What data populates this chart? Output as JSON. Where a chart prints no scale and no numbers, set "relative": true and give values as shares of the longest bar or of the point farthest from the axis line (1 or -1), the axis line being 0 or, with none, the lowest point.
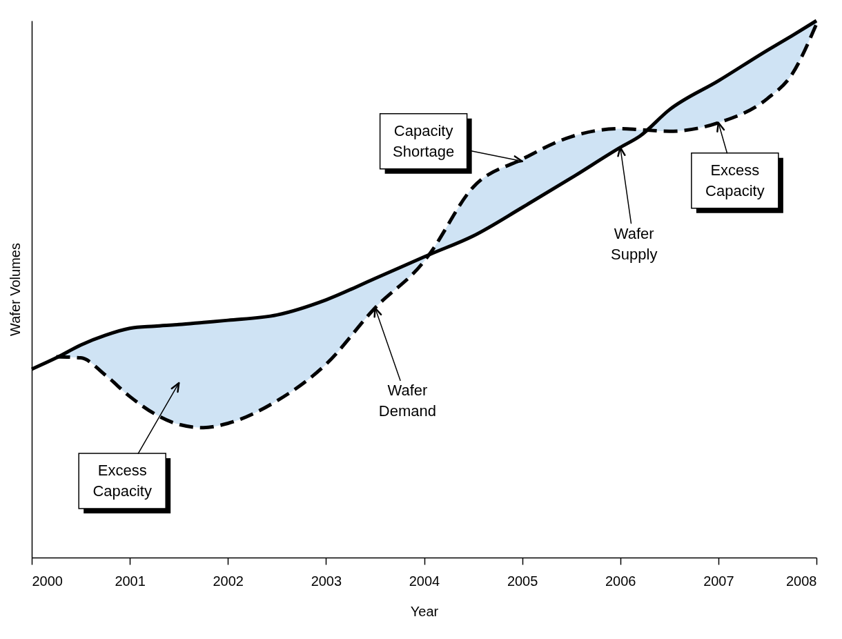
{
  "chart_data": {
    "type": "line",
    "relative": true,
    "xlabel": "Year",
    "ylabel": "Wafer Volumes",
    "xlim": [
      2000,
      2008
    ],
    "xticks": [
      2000,
      2001,
      2002,
      2003,
      2004,
      2005,
      2006,
      2007,
      2008
    ],
    "grid": false,
    "x": [
      2000,
      2000.25,
      2000.5,
      2000.75,
      2001,
      2001.25,
      2001.5,
      2001.75,
      2002,
      2002.5,
      2003,
      2003.5,
      2004,
      2004.05,
      2004.5,
      2005,
      2005.5,
      2006,
      2006.2,
      2006.5,
      2007,
      2007.5,
      2007.75,
      2008
    ],
    "series": [
      {
        "color": "#000000",
        "line_style": "solid",
        "values": [
          0.351,
          0.372,
          0.396,
          0.414,
          0.427,
          0.431,
          0.434,
          0.438,
          0.442,
          0.452,
          0.48,
          0.52,
          0.56,
          0.564,
          0.599,
          0.652,
          0.707,
          0.764,
          0.785,
          0.834,
          0.888,
          0.945,
          0.972,
          1.0
        ]
      },
      {
        "color": "#000000",
        "line_style": "dashed",
        "values": [
          null,
          0.374,
          0.372,
          0.34,
          0.3,
          0.268,
          0.248,
          0.242,
          0.25,
          0.292,
          0.36,
          0.465,
          0.552,
          0.564,
          0.69,
          0.742,
          0.784,
          0.799,
          0.797,
          0.794,
          0.81,
          0.855,
          0.9,
          0.994
        ],
        "lower": [
          null,
          0.374,
          0.372,
          0.34,
          0.3,
          0.268,
          0.248,
          0.242,
          0.25,
          0.292,
          0.36,
          0.465,
          0.552,
          0.564,
          0.69,
          0.742,
          0.784,
          0.799,
          0.797,
          0.794,
          0.81,
          0.855,
          0.9,
          0.994
        ],
        "upper": [
          null,
          0.372,
          0.396,
          0.414,
          0.427,
          0.431,
          0.434,
          0.438,
          0.442,
          0.452,
          0.48,
          0.52,
          0.56,
          0.564,
          0.599,
          0.652,
          0.707,
          0.764,
          0.785,
          0.834,
          0.888,
          0.945,
          0.972,
          1.0
        ]
      }
    ],
    "annotations": [
      "Excess Capacity",
      "Wafer Demand",
      "Capacity Shortage",
      "Wafer Supply",
      "Excess Capacity"
    ]
  }
}
